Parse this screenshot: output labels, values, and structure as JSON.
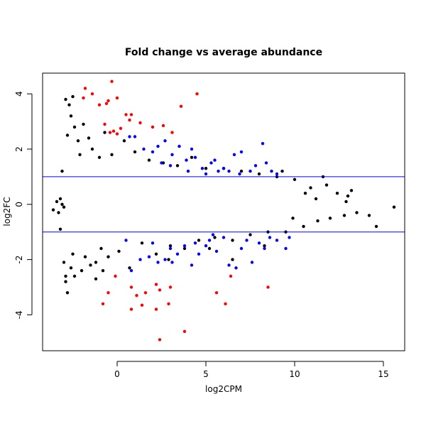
{
  "chart_data": {
    "type": "scatter",
    "title": "Fold change vs average abundance",
    "xlabel": "log2CPM",
    "ylabel": "log2FC",
    "xlim": [
      -4.2,
      16.2
    ],
    "ylim": [
      -5.3,
      4.75
    ],
    "x_ticks": [
      0,
      5,
      10,
      15
    ],
    "y_ticks": [
      -4,
      -2,
      0,
      2,
      4
    ],
    "x_tick_labels": [
      "0",
      "5",
      "10",
      "15"
    ],
    "y_tick_labels": [
      "-4",
      "-2",
      "0",
      "2",
      "4"
    ],
    "hlines": [
      1,
      -1
    ],
    "grid": false,
    "legend": "none",
    "colors": {
      "not_significant": "#000000",
      "significant_blue": "#0000ff",
      "significant_red": "#ff0000",
      "threshold_line": "#0000ff"
    },
    "series": [
      {
        "color": "#000000",
        "points": [
          [
            -3.6,
            -0.2
          ],
          [
            -3.4,
            0.1
          ],
          [
            -3.3,
            -0.3
          ],
          [
            -3.2,
            0.2
          ],
          [
            -3.1,
            0.0
          ],
          [
            -3.0,
            -0.1
          ],
          [
            -2.9,
            3.8
          ],
          [
            -2.9,
            -2.6
          ],
          [
            -3.0,
            -2.1
          ],
          [
            -3.1,
            1.2
          ],
          [
            -3.2,
            -0.9
          ],
          [
            -2.8,
            -3.2
          ],
          [
            -2.9,
            -2.8
          ],
          [
            -2.8,
            2.5
          ],
          [
            -2.7,
            3.6
          ],
          [
            -2.6,
            3.2
          ],
          [
            -2.5,
            3.9
          ],
          [
            -2.4,
            2.8
          ],
          [
            -2.6,
            -2.3
          ],
          [
            -2.5,
            -1.8
          ],
          [
            -2.4,
            -2.6
          ],
          [
            -2.2,
            2.3
          ],
          [
            -2.1,
            1.8
          ],
          [
            -2.0,
            -2.4
          ],
          [
            -1.9,
            2.9
          ],
          [
            -1.8,
            -1.9
          ],
          [
            -1.6,
            2.4
          ],
          [
            -1.5,
            -2.2
          ],
          [
            -1.4,
            2.0
          ],
          [
            -1.2,
            -2.1
          ],
          [
            -1.0,
            1.7
          ],
          [
            -0.9,
            -1.6
          ],
          [
            -0.7,
            2.6
          ],
          [
            -0.5,
            -1.9
          ],
          [
            -0.3,
            1.8
          ],
          [
            0.1,
            -1.7
          ],
          [
            0.4,
            2.3
          ],
          [
            0.7,
            -2.3
          ],
          [
            1.0,
            1.9
          ],
          [
            1.4,
            -1.4
          ],
          [
            1.8,
            1.6
          ],
          [
            2.2,
            -1.8
          ],
          [
            2.6,
            1.5
          ],
          [
            3.0,
            -1.5
          ],
          [
            3.4,
            1.4
          ],
          [
            3.8,
            -1.6
          ],
          [
            4.2,
            1.7
          ],
          [
            4.6,
            -1.3
          ],
          [
            5.0,
            1.3
          ],
          [
            5.5,
            -1.2
          ],
          [
            6.0,
            1.3
          ],
          [
            6.5,
            -1.3
          ],
          [
            7.0,
            1.2
          ],
          [
            7.5,
            -1.1
          ],
          [
            8.0,
            1.1
          ],
          [
            8.5,
            -1.0
          ],
          [
            9.0,
            1.0
          ],
          [
            9.3,
            1.2
          ],
          [
            9.5,
            -1.0
          ],
          [
            10.0,
            0.9
          ],
          [
            10.5,
            -0.8
          ],
          [
            10.9,
            0.6
          ],
          [
            11.3,
            -0.6
          ],
          [
            11.6,
            1.0
          ],
          [
            11.8,
            0.7
          ],
          [
            12.0,
            -0.5
          ],
          [
            12.4,
            0.4
          ],
          [
            12.8,
            -0.4
          ],
          [
            13.0,
            0.3
          ],
          [
            13.2,
            0.5
          ],
          [
            13.5,
            -0.3
          ],
          [
            14.2,
            -0.4
          ],
          [
            14.6,
            -0.8
          ],
          [
            15.6,
            -0.1
          ],
          [
            -1.2,
            -2.7
          ],
          [
            -0.8,
            -2.4
          ],
          [
            2.9,
            -2.0
          ],
          [
            5.2,
            -1.6
          ],
          [
            6.5,
            -2.0
          ],
          [
            8.3,
            -1.5
          ],
          [
            10.6,
            0.4
          ],
          [
            12.9,
            0.1
          ],
          [
            9.9,
            -0.5
          ],
          [
            11.2,
            0.2
          ]
        ]
      },
      {
        "color": "#0000ff",
        "points": [
          [
            0.7,
            2.45
          ],
          [
            1.0,
            2.45
          ],
          [
            1.5,
            2.0
          ],
          [
            2.0,
            1.9
          ],
          [
            2.3,
            2.1
          ],
          [
            2.7,
            2.3
          ],
          [
            3.1,
            1.8
          ],
          [
            3.5,
            2.1
          ],
          [
            3.9,
            1.6
          ],
          [
            4.2,
            2.0
          ],
          [
            4.4,
            1.7
          ],
          [
            4.8,
            1.3
          ],
          [
            5.0,
            1.1
          ],
          [
            5.3,
            1.5
          ],
          [
            5.7,
            1.2
          ],
          [
            6.0,
            1.3
          ],
          [
            6.3,
            1.2
          ],
          [
            6.6,
            1.8
          ],
          [
            7.0,
            1.9
          ],
          [
            7.5,
            1.2
          ],
          [
            7.8,
            1.4
          ],
          [
            8.2,
            2.2
          ],
          [
            8.4,
            1.5
          ],
          [
            8.7,
            1.2
          ],
          [
            9.0,
            1.1
          ],
          [
            3.0,
            1.4
          ],
          [
            4.0,
            1.2
          ],
          [
            5.5,
            1.6
          ],
          [
            2.5,
            1.5
          ],
          [
            6.9,
            1.1
          ],
          [
            0.5,
            -1.3
          ],
          [
            0.8,
            -2.4
          ],
          [
            1.3,
            -2.0
          ],
          [
            1.8,
            -1.9
          ],
          [
            2.3,
            -2.1
          ],
          [
            2.7,
            -2.0
          ],
          [
            3.1,
            -2.1
          ],
          [
            3.4,
            -1.8
          ],
          [
            3.8,
            -1.5
          ],
          [
            4.2,
            -2.2
          ],
          [
            4.6,
            -1.8
          ],
          [
            5.0,
            -1.5
          ],
          [
            5.2,
            -1.3
          ],
          [
            5.6,
            -1.7
          ],
          [
            6.0,
            -1.2
          ],
          [
            6.3,
            -2.2
          ],
          [
            6.7,
            -2.3
          ],
          [
            7.0,
            -1.6
          ],
          [
            7.3,
            -1.3
          ],
          [
            7.6,
            -2.1
          ],
          [
            8.0,
            -1.4
          ],
          [
            8.3,
            -1.6
          ],
          [
            8.6,
            -1.2
          ],
          [
            9.0,
            -1.3
          ],
          [
            9.5,
            -1.6
          ],
          [
            9.7,
            -1.2
          ],
          [
            4.4,
            -1.4
          ],
          [
            3.0,
            -1.6
          ],
          [
            5.4,
            -1.1
          ],
          [
            2.0,
            -1.4
          ]
        ]
      },
      {
        "color": "#ff0000",
        "points": [
          [
            -1.8,
            4.2
          ],
          [
            -1.4,
            4.0
          ],
          [
            -0.3,
            4.45
          ],
          [
            -1.9,
            3.85
          ],
          [
            -1.0,
            3.6
          ],
          [
            -0.5,
            3.75
          ],
          [
            0.0,
            3.85
          ],
          [
            -0.6,
            3.65
          ],
          [
            -0.4,
            2.6
          ],
          [
            -0.2,
            2.65
          ],
          [
            0.0,
            2.55
          ],
          [
            0.2,
            2.75
          ],
          [
            0.5,
            3.25
          ],
          [
            0.8,
            3.25
          ],
          [
            0.7,
            3.05
          ],
          [
            1.3,
            2.95
          ],
          [
            -0.7,
            2.9
          ],
          [
            2.0,
            2.8
          ],
          [
            2.6,
            2.85
          ],
          [
            3.1,
            2.6
          ],
          [
            3.6,
            3.55
          ],
          [
            4.5,
            4.0
          ],
          [
            -0.8,
            -3.6
          ],
          [
            -0.5,
            -3.2
          ],
          [
            -0.1,
            -2.6
          ],
          [
            0.8,
            -3.0
          ],
          [
            1.1,
            -3.3
          ],
          [
            0.8,
            -3.8
          ],
          [
            1.4,
            -3.65
          ],
          [
            1.6,
            -3.2
          ],
          [
            2.2,
            -2.9
          ],
          [
            2.2,
            -3.8
          ],
          [
            2.4,
            -3.1
          ],
          [
            2.4,
            -4.9
          ],
          [
            3.0,
            -3.0
          ],
          [
            2.9,
            -3.6
          ],
          [
            3.8,
            -4.6
          ],
          [
            5.6,
            -3.2
          ],
          [
            6.1,
            -3.6
          ],
          [
            6.4,
            -2.6
          ],
          [
            8.5,
            -3.0
          ]
        ]
      }
    ]
  }
}
